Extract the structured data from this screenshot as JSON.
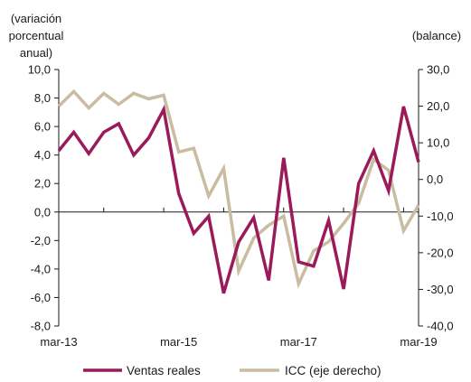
{
  "chart_data": {
    "type": "line",
    "x": [
      "mar-13",
      "jun-13",
      "sep-13",
      "dic-13",
      "mar-14",
      "jun-14",
      "sep-14",
      "dic-14",
      "mar-15",
      "jun-15",
      "sep-15",
      "dic-15",
      "mar-16",
      "jun-16",
      "sep-16",
      "dic-16",
      "mar-17",
      "jun-17",
      "sep-17",
      "dic-17",
      "mar-18",
      "jun-18",
      "sep-18",
      "dic-18",
      "mar-19"
    ],
    "x_tick_labels": [
      "mar-13",
      "mar-15",
      "mar-17",
      "mar-19"
    ],
    "y_left": {
      "title_lines": [
        "(variación",
        "porcentual",
        "anual)"
      ],
      "ylim": [
        -8.0,
        10.0
      ],
      "ticks": [
        "10,0",
        "8,0",
        "6,0",
        "4,0",
        "2,0",
        "0,0",
        "-2,0",
        "-4,0",
        "-6,0",
        "-8,0"
      ]
    },
    "y_right": {
      "title": "(balance)",
      "ylim": [
        -40.0,
        30.0
      ],
      "ticks": [
        "30,0",
        "20,0",
        "10,0",
        "0,0",
        "-10,0",
        "-20,0",
        "-30,0",
        "-40,0"
      ]
    },
    "series": [
      {
        "name": "Ventas reales",
        "axis": "left",
        "color": "#9b1b5a",
        "values": [
          4.3,
          5.6,
          4.1,
          5.6,
          6.2,
          4.0,
          5.2,
          7.2,
          1.3,
          -1.5,
          -0.3,
          -5.7,
          -2.1,
          -0.4,
          -4.8,
          3.8,
          -3.5,
          -3.8,
          -0.6,
          -5.4,
          2.0,
          4.3,
          1.5,
          7.4,
          3.5
        ]
      },
      {
        "name": "ICC (eje derecho)",
        "axis": "right",
        "color": "#c9bca0",
        "values": [
          20.0,
          24.0,
          19.5,
          23.5,
          20.5,
          23.5,
          22.0,
          23.0,
          7.5,
          8.5,
          -4.5,
          3.0,
          -25.0,
          -16.0,
          -12.5,
          -10.0,
          -28.5,
          -19.5,
          -17.0,
          -12.0,
          -6.5,
          5.5,
          2.5,
          -14.0,
          -7.0
        ]
      }
    ],
    "legend_position": "bottom",
    "grid": false,
    "colors": {
      "ventas": "#9b1b5a",
      "icc": "#c9bca0",
      "axis": "#1a1a1a"
    }
  }
}
